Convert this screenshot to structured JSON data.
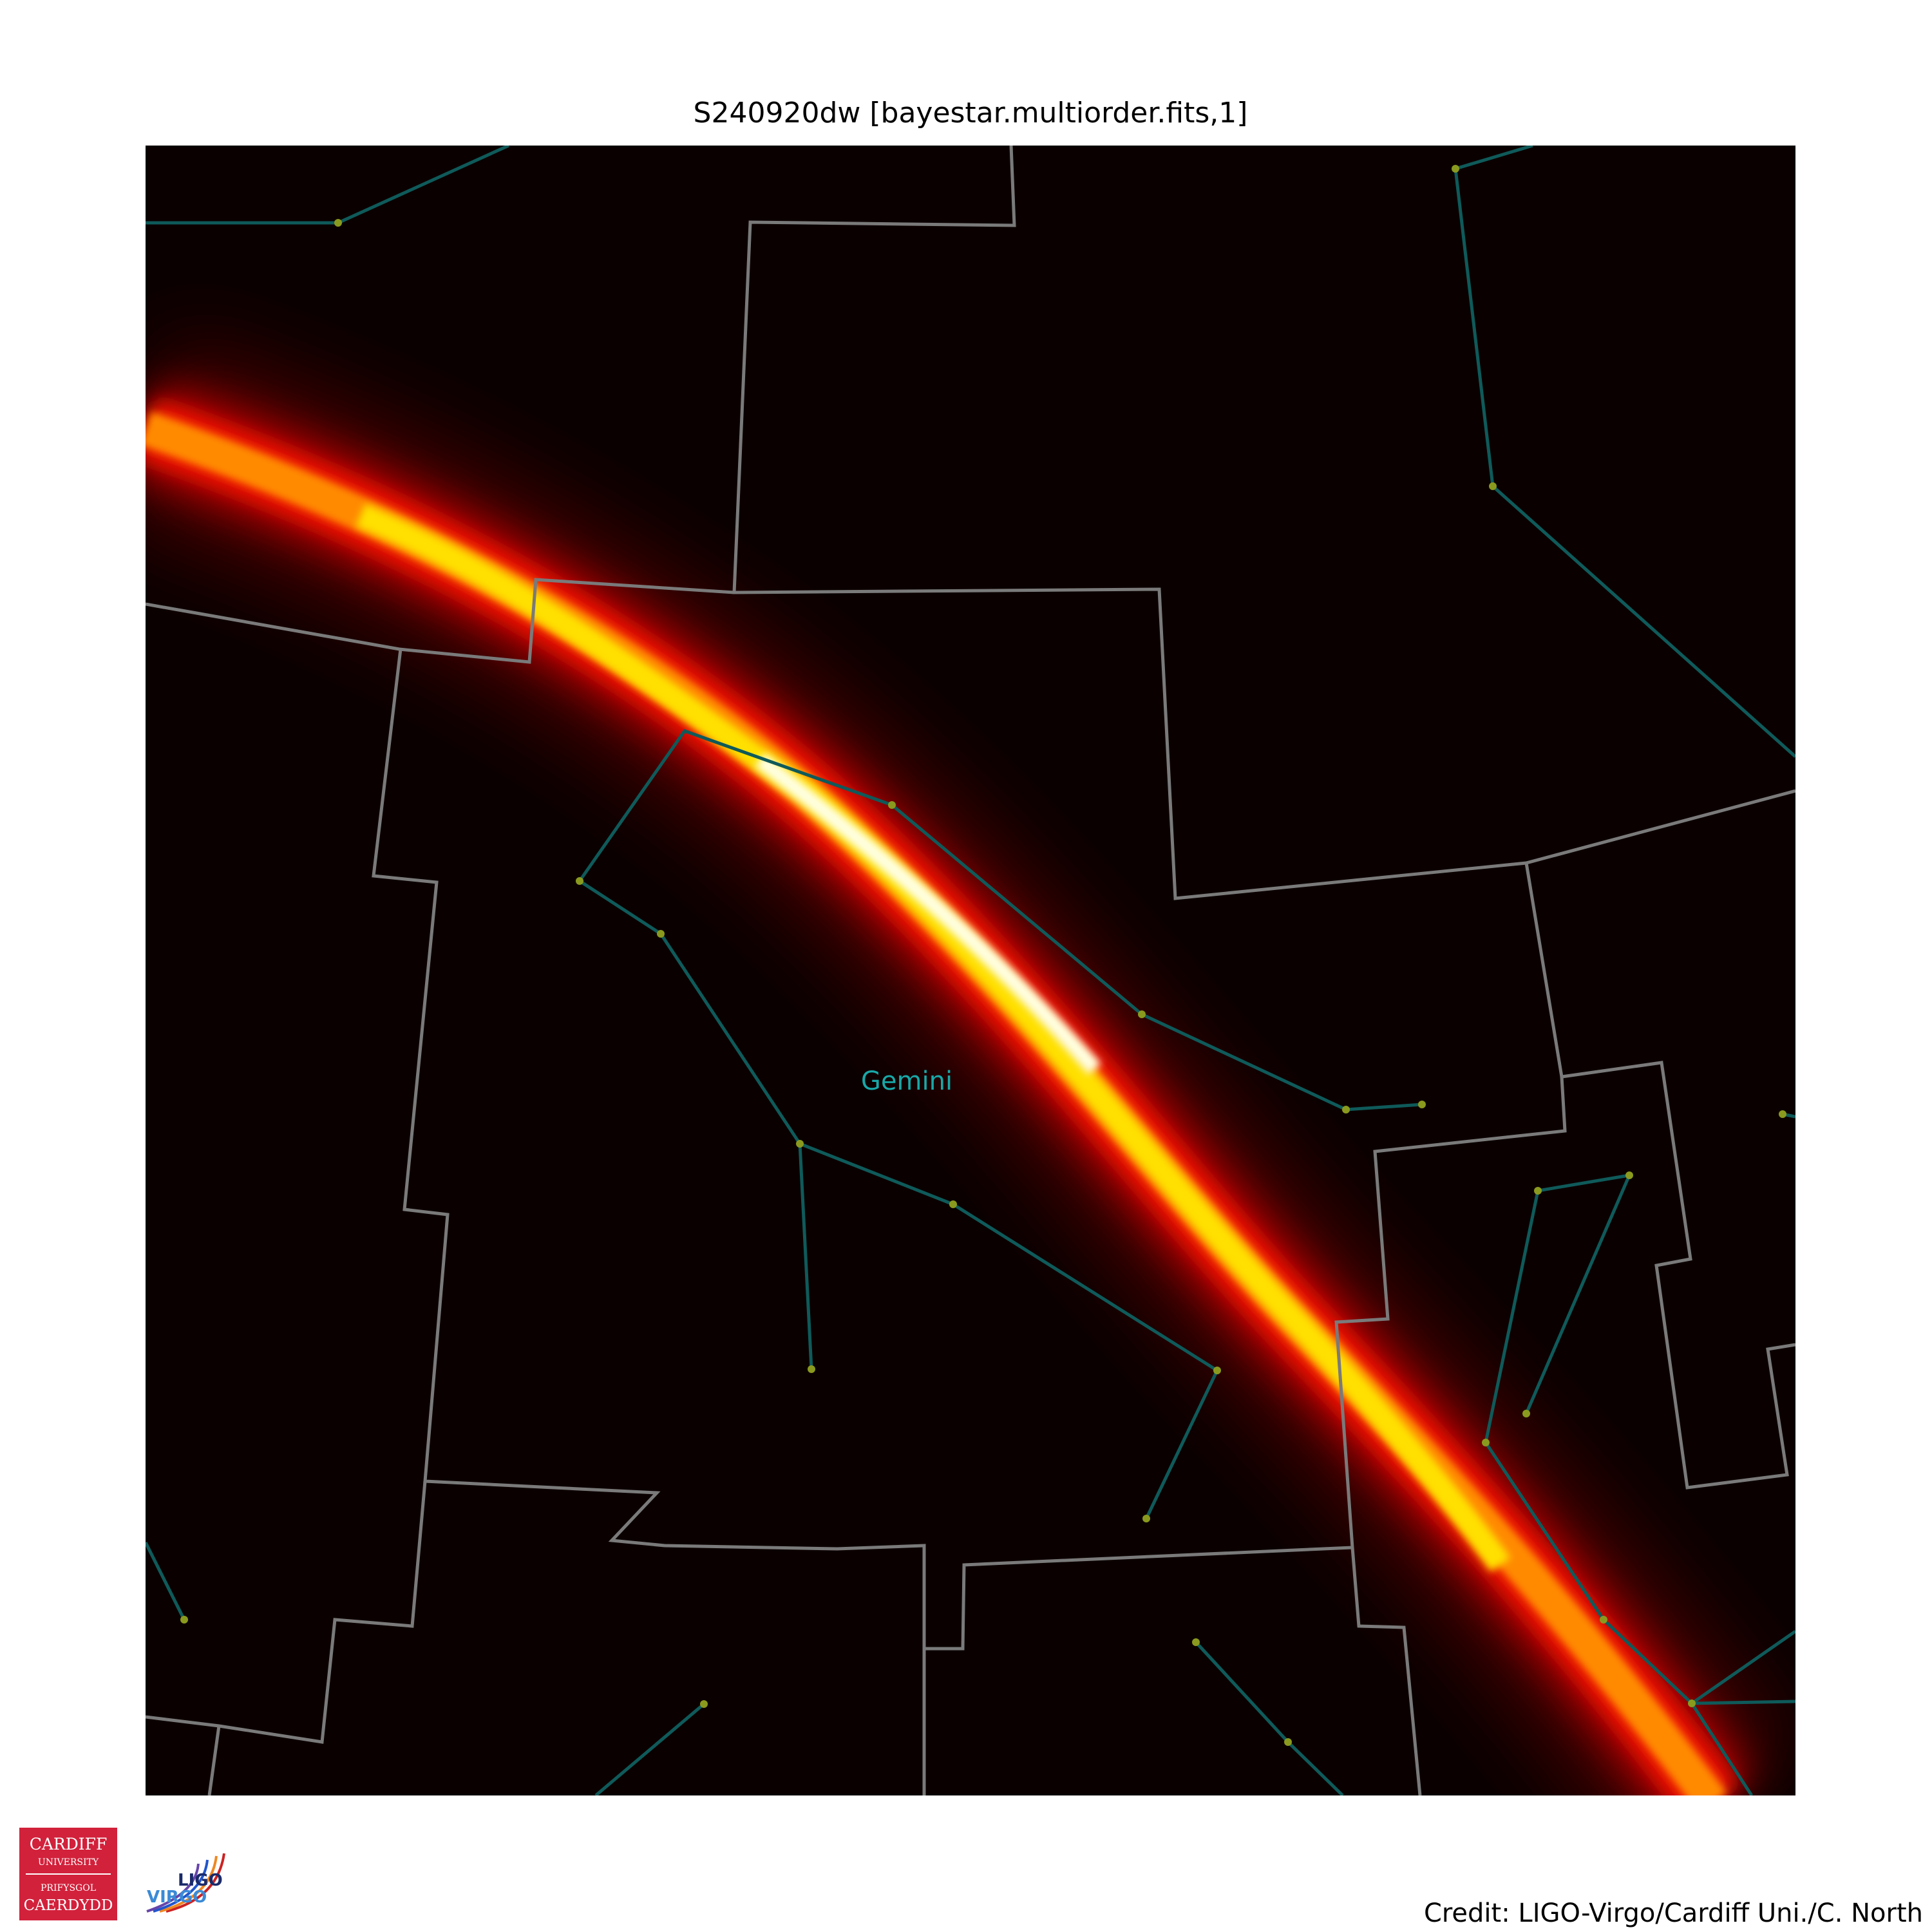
{
  "title": "S240920dw [bayestar.multiorder.fits,1]",
  "credit": "Credit: LIGO-Virgo/Cardiff Uni./C. North",
  "constellation_label": "Gemini",
  "colors": {
    "background": "#0b0000",
    "constellation_lines": "#0f5a5a",
    "constellation_stars": "#8a9a1e",
    "boundaries": "#7a7a7a",
    "label": "#18a8a8",
    "probability_colormap": [
      "#0b0000",
      "#3a0000",
      "#8a0000",
      "#e01000",
      "#ff6000",
      "#ffc000",
      "#ffff30",
      "#ffffff"
    ]
  },
  "logos": {
    "cardiff": {
      "icon": "cardiff-university-logo",
      "lines": [
        "CARDIFF",
        "UNIVERSITY",
        "PRIFYSGOL",
        "CAERDYDD"
      ]
    },
    "ligo_virgo": {
      "icon": "ligo-virgo-logo",
      "lines": [
        "LIGO",
        "VIRGO"
      ]
    }
  }
}
